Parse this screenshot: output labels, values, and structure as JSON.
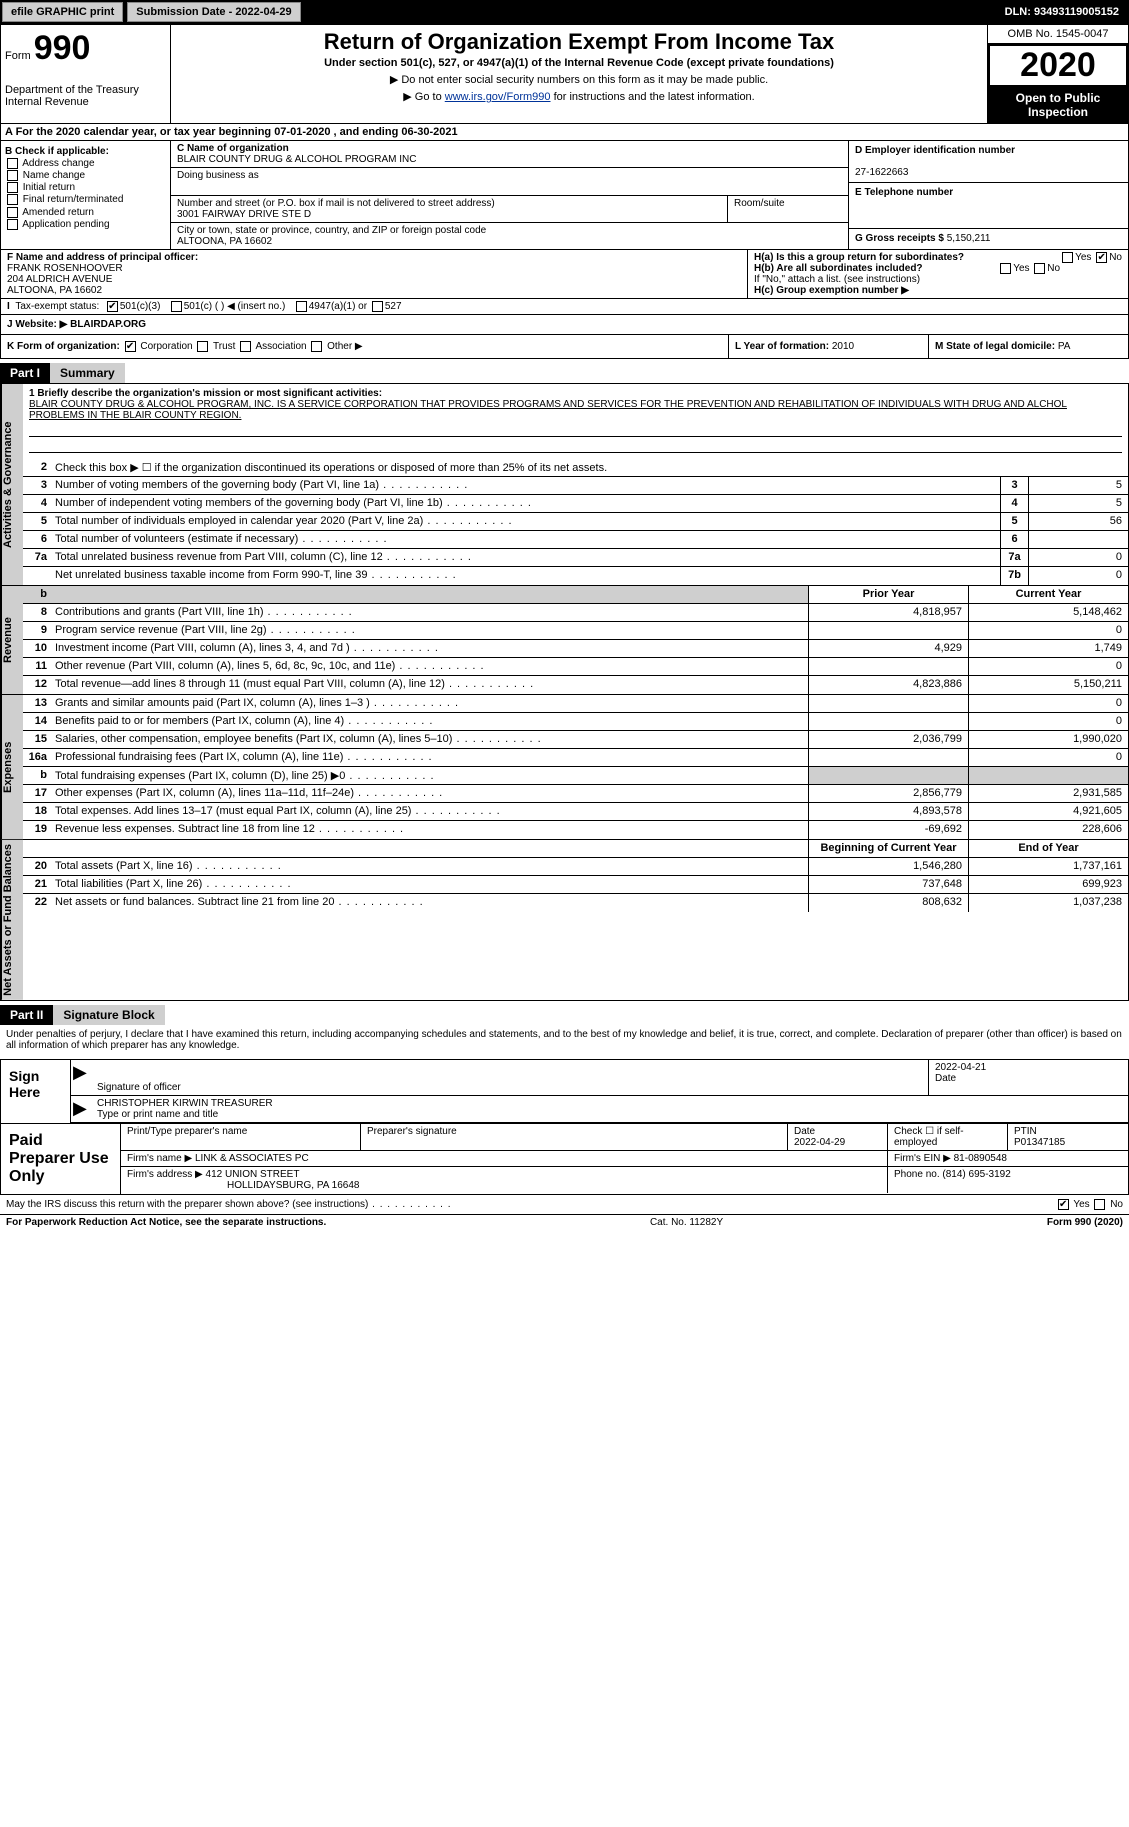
{
  "top": {
    "efile": "efile GRAPHIC print",
    "submission": "Submission Date - 2022-04-29",
    "dln": "DLN: 93493119005152"
  },
  "header": {
    "form_prefix": "Form",
    "form_num": "990",
    "dept1": "Department of the Treasury",
    "dept2": "Internal Revenue",
    "title": "Return of Organization Exempt From Income Tax",
    "subtitle": "Under section 501(c), 527, or 4947(a)(1) of the Internal Revenue Code (except private foundations)",
    "instr1": "▶ Do not enter social security numbers on this form as it may be made public.",
    "instr2_pre": "▶ Go to ",
    "instr2_link": "www.irs.gov/Form990",
    "instr2_post": " for instructions and the latest information.",
    "omb": "OMB No. 1545-0047",
    "year": "2020",
    "open": "Open to Public Inspection"
  },
  "sec_a": "A For the 2020 calendar year, or tax year beginning 07-01-2020   , and ending 06-30-2021",
  "col_b": {
    "hdr": "B Check if applicable:",
    "addr_change": "Address change",
    "name_change": "Name change",
    "initial": "Initial return",
    "final": "Final return/terminated",
    "amended": "Amended return",
    "app_pending": "Application pending"
  },
  "entity": {
    "c_label": "C Name of organization",
    "c_name": "BLAIR COUNTY DRUG & ALCOHOL PROGRAM INC",
    "dba_label": "Doing business as",
    "addr_label": "Number and street (or P.O. box if mail is not delivered to street address)",
    "addr": "3001 FAIRWAY DRIVE STE D",
    "room_label": "Room/suite",
    "city_label": "City or town, state or province, country, and ZIP or foreign postal code",
    "city": "ALTOONA, PA  16602"
  },
  "col_d": {
    "ein_label": "D Employer identification number",
    "ein": "27-1622663",
    "phone_label": "E Telephone number",
    "gross_label": "G Gross receipts $",
    "gross": "5,150,211"
  },
  "officer": {
    "f_label": "F  Name and address of principal officer:",
    "name": "FRANK ROSENHOOVER",
    "addr1": "204 ALDRICH AVENUE",
    "addr2": "ALTOONA, PA  16602"
  },
  "h": {
    "ha": "H(a)  Is this a group return for subordinates?",
    "hb": "H(b)  Are all subordinates included?",
    "hb_note": "If \"No,\" attach a list. (see instructions)",
    "hc": "H(c)  Group exemption number ▶",
    "yes": "Yes",
    "no": "No"
  },
  "status": {
    "label": "Tax-exempt status:",
    "c3": "501(c)(3)",
    "c_other": "501(c) (  ) ◀ (insert no.)",
    "a1": "4947(a)(1) or",
    "s527": "527"
  },
  "website": {
    "label": "J   Website: ▶",
    "val": "BLAIRDAP.ORG"
  },
  "k": {
    "label": "K Form of organization:",
    "corp": "Corporation",
    "trust": "Trust",
    "assoc": "Association",
    "other": "Other ▶",
    "l_label": "L Year of formation:",
    "l_val": "2010",
    "m_label": "M State of legal domicile:",
    "m_val": "PA"
  },
  "parts": {
    "p1": "Part I",
    "p1_title": "Summary",
    "p2": "Part II",
    "p2_title": "Signature Block"
  },
  "sides": {
    "gov": "Activities & Governance",
    "rev": "Revenue",
    "exp": "Expenses",
    "net": "Net Assets or Fund Balances"
  },
  "mission": {
    "q1": "1  Briefly describe the organization's mission or most significant activities:",
    "text": "BLAIR COUNTY DRUG & ALCOHOL PROGRAM, INC. IS A SERVICE CORPORATION THAT PROVIDES PROGRAMS AND SERVICES FOR THE PREVENTION AND REHABILITATION OF INDIVIDUALS WITH DRUG AND ALCHOL PROBLEMS IN THE BLAIR COUNTY REGION."
  },
  "gov_lines": [
    {
      "n": "2",
      "t": "Check this box ▶ ☐  if the organization discontinued its operations or disposed of more than 25% of its net assets."
    },
    {
      "n": "3",
      "t": "Number of voting members of the governing body (Part VI, line 1a)",
      "box": "3",
      "v": "5"
    },
    {
      "n": "4",
      "t": "Number of independent voting members of the governing body (Part VI, line 1b)",
      "box": "4",
      "v": "5"
    },
    {
      "n": "5",
      "t": "Total number of individuals employed in calendar year 2020 (Part V, line 2a)",
      "box": "5",
      "v": "56"
    },
    {
      "n": "6",
      "t": "Total number of volunteers (estimate if necessary)",
      "box": "6",
      "v": ""
    },
    {
      "n": "7a",
      "t": "Total unrelated business revenue from Part VIII, column (C), line 12",
      "box": "7a",
      "v": "0"
    },
    {
      "n": "",
      "t": "Net unrelated business taxable income from Form 990-T, line 39",
      "box": "7b",
      "v": "0"
    }
  ],
  "col_hdrs": {
    "prior": "Prior Year",
    "curr": "Current Year",
    "bbal": "Beginning of Current Year",
    "ebal": "End of Year"
  },
  "rev_lines": [
    {
      "n": "8",
      "t": "Contributions and grants (Part VIII, line 1h)",
      "p": "4,818,957",
      "c": "5,148,462"
    },
    {
      "n": "9",
      "t": "Program service revenue (Part VIII, line 2g)",
      "p": "",
      "c": "0"
    },
    {
      "n": "10",
      "t": "Investment income (Part VIII, column (A), lines 3, 4, and 7d )",
      "p": "4,929",
      "c": "1,749"
    },
    {
      "n": "11",
      "t": "Other revenue (Part VIII, column (A), lines 5, 6d, 8c, 9c, 10c, and 11e)",
      "p": "",
      "c": "0"
    },
    {
      "n": "12",
      "t": "Total revenue—add lines 8 through 11 (must equal Part VIII, column (A), line 12)",
      "p": "4,823,886",
      "c": "5,150,211"
    }
  ],
  "exp_lines": [
    {
      "n": "13",
      "t": "Grants and similar amounts paid (Part IX, column (A), lines 1–3 )",
      "p": "",
      "c": "0"
    },
    {
      "n": "14",
      "t": "Benefits paid to or for members (Part IX, column (A), line 4)",
      "p": "",
      "c": "0"
    },
    {
      "n": "15",
      "t": "Salaries, other compensation, employee benefits (Part IX, column (A), lines 5–10)",
      "p": "2,036,799",
      "c": "1,990,020"
    },
    {
      "n": "16a",
      "t": "Professional fundraising fees (Part IX, column (A), line 11e)",
      "p": "",
      "c": "0"
    },
    {
      "n": "b",
      "t": "Total fundraising expenses (Part IX, column (D), line 25) ▶0",
      "p": "shaded",
      "c": "shaded"
    },
    {
      "n": "17",
      "t": "Other expenses (Part IX, column (A), lines 11a–11d, 11f–24e)",
      "p": "2,856,779",
      "c": "2,931,585"
    },
    {
      "n": "18",
      "t": "Total expenses. Add lines 13–17 (must equal Part IX, column (A), line 25)",
      "p": "4,893,578",
      "c": "4,921,605"
    },
    {
      "n": "19",
      "t": "Revenue less expenses. Subtract line 18 from line 12",
      "p": "-69,692",
      "c": "228,606"
    }
  ],
  "net_lines": [
    {
      "n": "20",
      "t": "Total assets (Part X, line 16)",
      "p": "1,546,280",
      "c": "1,737,161"
    },
    {
      "n": "21",
      "t": "Total liabilities (Part X, line 26)",
      "p": "737,648",
      "c": "699,923"
    },
    {
      "n": "22",
      "t": "Net assets or fund balances. Subtract line 21 from line 20",
      "p": "808,632",
      "c": "1,037,238"
    }
  ],
  "sig": {
    "declare": "Under penalties of perjury, I declare that I have examined this return, including accompanying schedules and statements, and to the best of my knowledge and belief, it is true, correct, and complete. Declaration of preparer (other than officer) is based on all information of which preparer has any knowledge.",
    "sign_here": "Sign Here",
    "sig_officer": "Signature of officer",
    "date_label": "Date",
    "date": "2022-04-21",
    "name_title": "CHRISTOPHER KIRWIN  TREASURER",
    "type_label": "Type or print name and title"
  },
  "prep": {
    "label": "Paid Preparer Use Only",
    "name_label": "Print/Type preparer's name",
    "sig_label": "Preparer's signature",
    "date_label": "Date",
    "date": "2022-04-29",
    "self_label": "Check ☐ if self-employed",
    "ptin_label": "PTIN",
    "ptin": "P01347185",
    "firm_name_label": "Firm's name    ▶",
    "firm_name": "LINK & ASSOCIATES PC",
    "firm_ein_label": "Firm's EIN ▶",
    "firm_ein": "81-0890548",
    "firm_addr_label": "Firm's address ▶",
    "firm_addr1": "412 UNION STREET",
    "firm_addr2": "HOLLIDAYSBURG, PA  16648",
    "phone_label": "Phone no.",
    "phone": "(814) 695-3192"
  },
  "footer": {
    "discuss": "May the IRS discuss this return with the preparer shown above? (see instructions)",
    "yes": "Yes",
    "no": "No",
    "paperwork": "For Paperwork Reduction Act Notice, see the separate instructions.",
    "cat": "Cat. No. 11282Y",
    "form": "Form 990 (2020)"
  }
}
